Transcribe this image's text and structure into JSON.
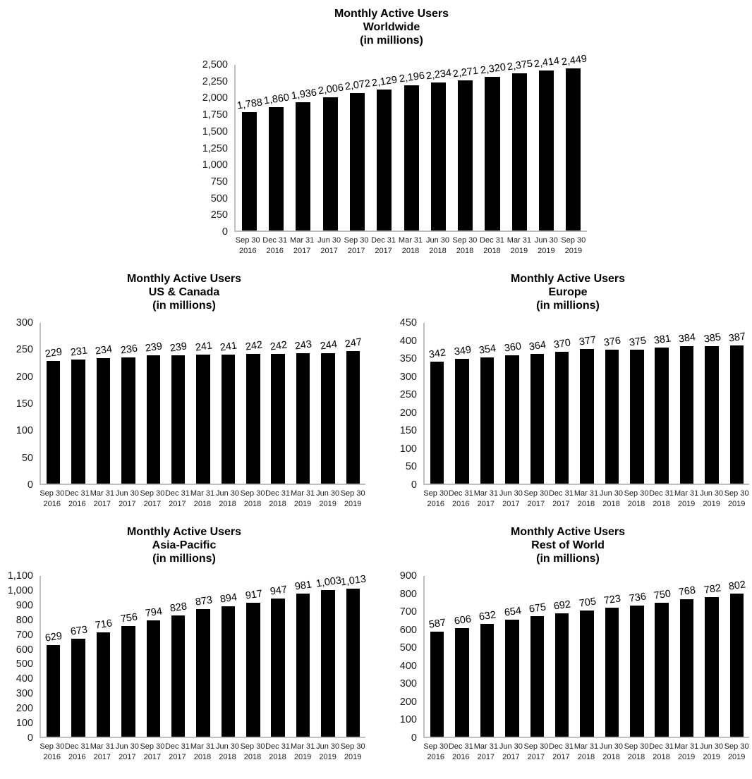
{
  "page": {
    "bar_color": "#000000",
    "axis_line_color": "#bfbfbf",
    "text_color": "#000000",
    "background_color": "#ffffff"
  },
  "chart_data": [
    {
      "type": "bar",
      "title": "Monthly Active Users Worldwide (in millions)",
      "title_lines": [
        "Monthly Active Users",
        "Worldwide",
        "(in millions)"
      ],
      "xlabel": "",
      "ylabel": "",
      "legend_position": "none",
      "grid": false,
      "bar_color": "#000000",
      "categories": [
        "Sep 30 2016",
        "Dec 31 2016",
        "Mar 31 2017",
        "Jun 30 2017",
        "Sep 30 2017",
        "Dec 31 2017",
        "Mar 31 2018",
        "Jun 30 2018",
        "Sep 30 2018",
        "Dec 31 2018",
        "Mar 31 2019",
        "Jun 30 2019",
        "Sep 30 2019"
      ],
      "values": [
        1788,
        1860,
        1936,
        2006,
        2072,
        2129,
        2196,
        2234,
        2271,
        2320,
        2375,
        2414,
        2449
      ],
      "value_labels": [
        "1,788",
        "1,860",
        "1,936",
        "2,006",
        "2,072",
        "2,129",
        "2,196",
        "2,234",
        "2,271",
        "2,320",
        "2,375",
        "2,414",
        "2,449"
      ],
      "ylim": [
        0,
        2500
      ],
      "ytick_step": 250,
      "ytick_labels": [
        "2,500",
        "2,250",
        "2,000",
        "1,750",
        "1,500",
        "1,250",
        "1,000",
        "750",
        "500",
        "250",
        "0"
      ]
    },
    {
      "type": "bar",
      "title": "Monthly Active Users US & Canada (in millions)",
      "title_lines": [
        "Monthly Active Users",
        "US & Canada",
        "(in millions)"
      ],
      "xlabel": "",
      "ylabel": "",
      "legend_position": "none",
      "grid": false,
      "bar_color": "#000000",
      "categories": [
        "Sep 30 2016",
        "Dec 31 2016",
        "Mar 31 2017",
        "Jun 30 2017",
        "Sep 30 2017",
        "Dec 31 2017",
        "Mar 31 2018",
        "Jun 30 2018",
        "Sep 30 2018",
        "Dec 31 2018",
        "Mar 31 2019",
        "Jun 30 2019",
        "Sep 30 2019"
      ],
      "values": [
        229,
        231,
        234,
        236,
        239,
        239,
        241,
        241,
        242,
        242,
        243,
        244,
        247
      ],
      "value_labels": [
        "229",
        "231",
        "234",
        "236",
        "239",
        "239",
        "241",
        "241",
        "242",
        "242",
        "243",
        "244",
        "247"
      ],
      "ylim": [
        0,
        300
      ],
      "ytick_step": 50,
      "ytick_labels": [
        "300",
        "250",
        "200",
        "150",
        "100",
        "50",
        "0"
      ]
    },
    {
      "type": "bar",
      "title": "Monthly Active Users Europe (in millions)",
      "title_lines": [
        "Monthly Active Users",
        "Europe",
        "(in millions)"
      ],
      "xlabel": "",
      "ylabel": "",
      "legend_position": "none",
      "grid": false,
      "bar_color": "#000000",
      "categories": [
        "Sep 30 2016",
        "Dec 31 2016",
        "Mar 31 2017",
        "Jun 30 2017",
        "Sep 30 2017",
        "Dec 31 2017",
        "Mar 31 2018",
        "Jun 30 2018",
        "Sep 30 2018",
        "Dec 31 2018",
        "Mar 31 2019",
        "Jun 30 2019",
        "Sep 30 2019"
      ],
      "values": [
        342,
        349,
        354,
        360,
        364,
        370,
        377,
        376,
        375,
        381,
        384,
        385,
        387
      ],
      "value_labels": [
        "342",
        "349",
        "354",
        "360",
        "364",
        "370",
        "377",
        "376",
        "375",
        "381",
        "384",
        "385",
        "387"
      ],
      "ylim": [
        0,
        450
      ],
      "ytick_step": 50,
      "ytick_labels": [
        "450",
        "400",
        "350",
        "300",
        "250",
        "200",
        "150",
        "100",
        "50",
        "0"
      ]
    },
    {
      "type": "bar",
      "title": "Monthly Active Users Asia-Pacific (in millions)",
      "title_lines": [
        "Monthly Active Users",
        "Asia-Pacific",
        "(in millions)"
      ],
      "xlabel": "",
      "ylabel": "",
      "legend_position": "none",
      "grid": false,
      "bar_color": "#000000",
      "categories": [
        "Sep 30 2016",
        "Dec 31 2016",
        "Mar 31 2017",
        "Jun 30 2017",
        "Sep 30 2017",
        "Dec 31 2017",
        "Mar 31 2018",
        "Jun 30 2018",
        "Sep 30 2018",
        "Dec 31 2018",
        "Mar 31 2019",
        "Jun 30 2019",
        "Sep 30 2019"
      ],
      "values": [
        629,
        673,
        716,
        756,
        794,
        828,
        873,
        894,
        917,
        947,
        981,
        1003,
        1013
      ],
      "value_labels": [
        "629",
        "673",
        "716",
        "756",
        "794",
        "828",
        "873",
        "894",
        "917",
        "947",
        "981",
        "1,003",
        "1,013"
      ],
      "ylim": [
        0,
        1100
      ],
      "ytick_step": 100,
      "ytick_labels": [
        "1,100",
        "1,000",
        "900",
        "800",
        "700",
        "600",
        "500",
        "400",
        "300",
        "200",
        "100",
        "0"
      ]
    },
    {
      "type": "bar",
      "title": "Monthly Active Users Rest of World (in millions)",
      "title_lines": [
        "Monthly Active Users",
        "Rest of World",
        "(in millions)"
      ],
      "xlabel": "",
      "ylabel": "",
      "legend_position": "none",
      "grid": false,
      "bar_color": "#000000",
      "categories": [
        "Sep 30 2016",
        "Dec 31 2016",
        "Mar 31 2017",
        "Jun 30 2017",
        "Sep 30 2017",
        "Dec 31 2017",
        "Mar 31 2018",
        "Jun 30 2018",
        "Sep 30 2018",
        "Dec 31 2018",
        "Mar 31 2019",
        "Jun 30 2019",
        "Sep 30 2019"
      ],
      "values": [
        587,
        606,
        632,
        654,
        675,
        692,
        705,
        723,
        736,
        750,
        768,
        782,
        802
      ],
      "value_labels": [
        "587",
        "606",
        "632",
        "654",
        "675",
        "692",
        "705",
        "723",
        "736",
        "750",
        "768",
        "782",
        "802"
      ],
      "ylim": [
        0,
        900
      ],
      "ytick_step": 100,
      "ytick_labels": [
        "900",
        "800",
        "700",
        "600",
        "500",
        "400",
        "300",
        "200",
        "100",
        "0"
      ]
    }
  ]
}
